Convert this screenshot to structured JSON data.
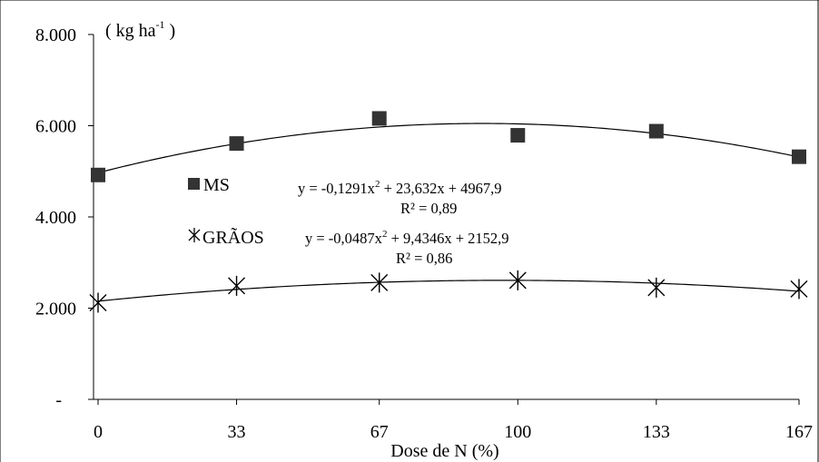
{
  "chart_data": {
    "type": "scatter",
    "title": "",
    "unit_label": {
      "pre": "( kg ha",
      "sup": "-1",
      "post": " )"
    },
    "xlabel": "Dose de N (%)",
    "ylabel": "",
    "x": [
      0,
      33,
      67,
      100,
      133,
      167
    ],
    "x_tick_labels": [
      "0",
      "33",
      "67",
      "100",
      "133",
      "167"
    ],
    "ylim": [
      0,
      8000
    ],
    "y_ticks": [
      0,
      2000,
      4000,
      6000,
      8000
    ],
    "y_tick_labels": [
      "-",
      "2.000",
      "4.000",
      "6.000",
      "8.000"
    ],
    "grid": false,
    "series": [
      {
        "name": "MS",
        "marker": "square",
        "color": "#333333",
        "values": [
          4920,
          5610,
          6160,
          5790,
          5880,
          5320
        ],
        "fit": {
          "a": -0.1291,
          "b": 23.632,
          "c": 4967.9
        },
        "equation": {
          "pre": "y = -0,1291x",
          "sup": "2",
          "post": " + 23,632x + 4967,9"
        },
        "r2_label": "R² = 0,89"
      },
      {
        "name": "GRÃOS",
        "marker": "asterisk",
        "color": "#000000",
        "values": [
          2120,
          2490,
          2560,
          2610,
          2450,
          2420
        ],
        "fit": {
          "a": -0.0487,
          "b": 9.4346,
          "c": 2152.9
        },
        "equation": {
          "pre": "y = -0,0487x",
          "sup": "2",
          "post": " + 9,4346x + 2152,9"
        },
        "r2_label": "R² = 0,86"
      }
    ]
  }
}
